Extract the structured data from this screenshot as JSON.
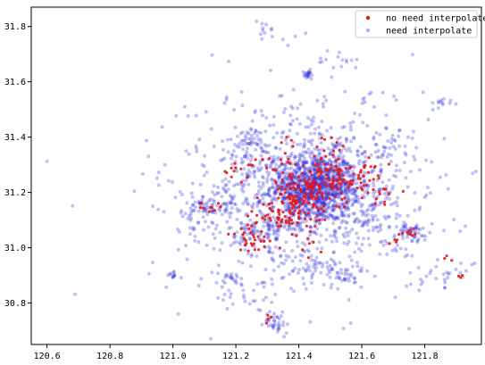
{
  "chart_data": {
    "type": "scatter",
    "title": "",
    "xlabel": "",
    "ylabel": "",
    "xlim": [
      120.55,
      121.98
    ],
    "ylim": [
      30.65,
      31.87
    ],
    "x_ticks": [
      "120.6",
      "120.8",
      "121.0",
      "121.2",
      "121.4",
      "121.6",
      "121.8"
    ],
    "y_ticks": [
      "30.8",
      "31.0",
      "31.2",
      "31.4",
      "31.6",
      "31.8"
    ],
    "grid": false,
    "legend": "top-right",
    "series": [
      {
        "name": "no need interpolate",
        "color": "#e31a1c",
        "marker": "dot",
        "clusters": [
          {
            "cx": 121.42,
            "cy": 31.2,
            "sx": 0.06,
            "sy": 0.05,
            "n": 160
          },
          {
            "cx": 121.52,
            "cy": 31.24,
            "sx": 0.07,
            "sy": 0.05,
            "n": 60
          },
          {
            "cx": 121.36,
            "cy": 31.13,
            "sx": 0.05,
            "sy": 0.04,
            "n": 45
          },
          {
            "cx": 121.26,
            "cy": 31.04,
            "sx": 0.04,
            "sy": 0.03,
            "n": 35
          },
          {
            "cx": 121.2,
            "cy": 31.28,
            "sx": 0.03,
            "sy": 0.02,
            "n": 14
          },
          {
            "cx": 121.62,
            "cy": 31.27,
            "sx": 0.03,
            "sy": 0.03,
            "n": 18
          },
          {
            "cx": 121.66,
            "cy": 31.2,
            "sx": 0.03,
            "sy": 0.02,
            "n": 12
          },
          {
            "cx": 121.12,
            "cy": 31.15,
            "sx": 0.03,
            "sy": 0.01,
            "n": 10
          },
          {
            "cx": 121.35,
            "cy": 31.32,
            "sx": 0.03,
            "sy": 0.03,
            "n": 16
          },
          {
            "cx": 121.75,
            "cy": 31.05,
            "sx": 0.02,
            "sy": 0.01,
            "n": 8
          },
          {
            "cx": 121.7,
            "cy": 31.02,
            "sx": 0.01,
            "sy": 0.01,
            "n": 5
          },
          {
            "cx": 121.3,
            "cy": 30.74,
            "sx": 0.01,
            "sy": 0.01,
            "n": 4
          },
          {
            "cx": 121.87,
            "cy": 30.97,
            "sx": 0.01,
            "sy": 0.01,
            "n": 3
          },
          {
            "cx": 121.92,
            "cy": 30.89,
            "sx": 0.01,
            "sy": 0.01,
            "n": 3
          },
          {
            "cx": 121.48,
            "cy": 31.36,
            "sx": 0.03,
            "sy": 0.02,
            "n": 12
          },
          {
            "cx": 121.44,
            "cy": 31.02,
            "sx": 0.04,
            "sy": 0.02,
            "n": 10
          }
        ]
      },
      {
        "name": "need interpolate",
        "color": "#1f1fe0",
        "marker": "circle-alpha",
        "clusters": [
          {
            "cx": 121.45,
            "cy": 31.22,
            "sx": 0.07,
            "sy": 0.06,
            "n": 900
          },
          {
            "cx": 121.45,
            "cy": 31.22,
            "sx": 0.16,
            "sy": 0.13,
            "n": 600
          },
          {
            "cx": 121.4,
            "cy": 31.2,
            "sx": 0.24,
            "sy": 0.2,
            "n": 350
          },
          {
            "cx": 121.28,
            "cy": 31.05,
            "sx": 0.05,
            "sy": 0.04,
            "n": 90
          },
          {
            "cx": 121.12,
            "cy": 31.15,
            "sx": 0.04,
            "sy": 0.02,
            "n": 60
          },
          {
            "cx": 121.25,
            "cy": 31.38,
            "sx": 0.04,
            "sy": 0.03,
            "n": 60
          },
          {
            "cx": 121.75,
            "cy": 31.05,
            "sx": 0.04,
            "sy": 0.02,
            "n": 50
          },
          {
            "cx": 121.45,
            "cy": 30.92,
            "sx": 0.05,
            "sy": 0.03,
            "n": 50
          },
          {
            "cx": 121.33,
            "cy": 30.73,
            "sx": 0.02,
            "sy": 0.02,
            "n": 35
          },
          {
            "cx": 121.43,
            "cy": 31.63,
            "sx": 0.01,
            "sy": 0.01,
            "n": 20
          },
          {
            "cx": 121.52,
            "cy": 31.68,
            "sx": 0.03,
            "sy": 0.02,
            "n": 12
          },
          {
            "cx": 121.85,
            "cy": 31.52,
            "sx": 0.02,
            "sy": 0.01,
            "n": 12
          },
          {
            "cx": 121.0,
            "cy": 30.9,
            "sx": 0.01,
            "sy": 0.01,
            "n": 12
          },
          {
            "cx": 121.18,
            "cy": 30.89,
            "sx": 0.02,
            "sy": 0.01,
            "n": 14
          },
          {
            "cx": 121.25,
            "cy": 30.84,
            "sx": 0.05,
            "sy": 0.04,
            "n": 30
          },
          {
            "cx": 121.85,
            "cy": 30.9,
            "sx": 0.03,
            "sy": 0.02,
            "n": 20
          },
          {
            "cx": 121.68,
            "cy": 31.36,
            "sx": 0.03,
            "sy": 0.03,
            "n": 25
          },
          {
            "cx": 121.55,
            "cy": 30.9,
            "sx": 0.04,
            "sy": 0.03,
            "n": 30
          },
          {
            "cx": 121.3,
            "cy": 31.78,
            "sx": 0.06,
            "sy": 0.03,
            "n": 14
          },
          {
            "cx": 121.08,
            "cy": 31.05,
            "sx": 0.05,
            "sy": 0.05,
            "n": 20
          },
          {
            "cx": 121.65,
            "cy": 31.1,
            "sx": 0.05,
            "sy": 0.06,
            "n": 40
          },
          {
            "cx": 121.6,
            "cy": 31.55,
            "sx": 0.1,
            "sy": 0.06,
            "n": 14
          },
          {
            "cx": 120.6,
            "cy": 31.31,
            "sx": 0.002,
            "sy": 0.002,
            "n": 1
          },
          {
            "cx": 121.9,
            "cy": 31.52,
            "sx": 0.002,
            "sy": 0.002,
            "n": 1
          },
          {
            "cx": 121.93,
            "cy": 30.92,
            "sx": 0.01,
            "sy": 0.01,
            "n": 4
          }
        ]
      }
    ]
  }
}
